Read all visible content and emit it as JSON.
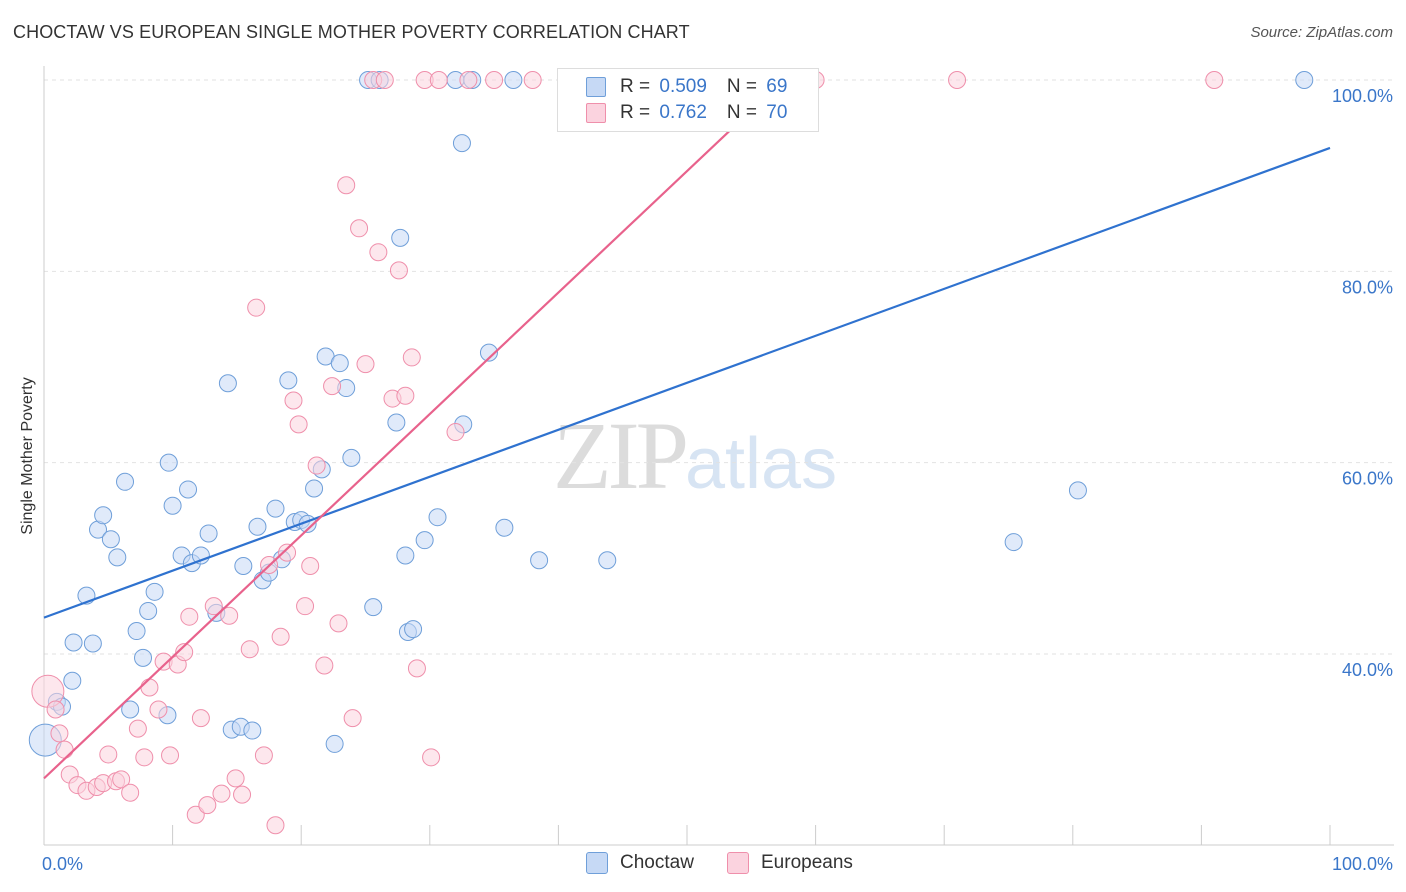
{
  "title": "CHOCTAW VS EUROPEAN SINGLE MOTHER POVERTY CORRELATION CHART",
  "source": "Source: ZipAtlas.com",
  "watermark": {
    "zip": "ZIP",
    "atlas": "atlas"
  },
  "colors": {
    "choctaw_fill": "#c6d9f5",
    "choctaw_stroke": "#6f9fd9",
    "choctaw_line": "#2f72cf",
    "europeans_fill": "#fbd3df",
    "europeans_stroke": "#ef8fab",
    "europeans_line": "#e8628c",
    "axis_text": "#3a76c9"
  },
  "legend_top": {
    "rows": [
      {
        "r_label": "R = ",
        "r_value": "0.509",
        "n_label": "N = ",
        "n_value": "69"
      },
      {
        "r_label": "R = ",
        "r_value": "0.762",
        "n_label": "N = ",
        "n_value": "70"
      }
    ]
  },
  "legend_bottom": [
    "Choctaw",
    "Europeans"
  ],
  "chart_data": {
    "type": "scatter",
    "title": "CHOCTAW VS EUROPEAN SINGLE MOTHER POVERTY CORRELATION CHART",
    "xlabel": "",
    "ylabel": "Single Mother Poverty",
    "x_ticks": [
      "0.0%",
      "100.0%"
    ],
    "y_ticks": [
      "40.0%",
      "60.0%",
      "80.0%",
      "100.0%"
    ],
    "xlim": [
      0,
      100
    ],
    "ylim": [
      20.5,
      101
    ],
    "grid": true,
    "legend_position": "top-center",
    "series": [
      {
        "name": "Choctaw",
        "r": 0.509,
        "n": 69,
        "trend": {
          "x": [
            0,
            100
          ],
          "y": [
            43.8,
            92.9
          ]
        },
        "points": [
          [
            0.1,
            31
          ],
          [
            1.0,
            35
          ],
          [
            1.4,
            34.5
          ],
          [
            2.2,
            37.2
          ],
          [
            2.3,
            41.2
          ],
          [
            3.3,
            46.1
          ],
          [
            3.8,
            41.1
          ],
          [
            4.2,
            53
          ],
          [
            4.6,
            54.5
          ],
          [
            5.2,
            52
          ],
          [
            5.7,
            50.1
          ],
          [
            6.3,
            58
          ],
          [
            6.7,
            34.2
          ],
          [
            7.2,
            42.4
          ],
          [
            7.7,
            39.6
          ],
          [
            8.1,
            44.5
          ],
          [
            8.6,
            46.5
          ],
          [
            9.6,
            33.6
          ],
          [
            9.7,
            60
          ],
          [
            10.0,
            55.5
          ],
          [
            10.7,
            50.3
          ],
          [
            11.2,
            57.2
          ],
          [
            11.5,
            49.5
          ],
          [
            12.2,
            50.3
          ],
          [
            12.8,
            52.6
          ],
          [
            13.4,
            44.3
          ],
          [
            14.3,
            68.3
          ],
          [
            14.6,
            32.1
          ],
          [
            15.3,
            32.4
          ],
          [
            15.5,
            49.2
          ],
          [
            16.2,
            32
          ],
          [
            16.6,
            53.3
          ],
          [
            17.0,
            47.7
          ],
          [
            17.5,
            48.5
          ],
          [
            18.0,
            55.2
          ],
          [
            18.5,
            49.9
          ],
          [
            19.0,
            68.6
          ],
          [
            19.5,
            53.8
          ],
          [
            20.0,
            54.0
          ],
          [
            20.5,
            53.6
          ],
          [
            21.0,
            57.3
          ],
          [
            21.6,
            59.3
          ],
          [
            21.9,
            71.1
          ],
          [
            22.6,
            30.6
          ],
          [
            23.0,
            70.4
          ],
          [
            23.5,
            67.8
          ],
          [
            23.9,
            60.5
          ],
          [
            25.2,
            100
          ],
          [
            25.6,
            44.9
          ],
          [
            26.1,
            100
          ],
          [
            27.4,
            64.2
          ],
          [
            27.7,
            83.5
          ],
          [
            28.1,
            50.3
          ],
          [
            28.3,
            42.3
          ],
          [
            28.7,
            42.6
          ],
          [
            29.6,
            51.9
          ],
          [
            30.6,
            54.3
          ],
          [
            32.0,
            100
          ],
          [
            32.5,
            93.4
          ],
          [
            32.6,
            64
          ],
          [
            33.3,
            100
          ],
          [
            34.6,
            71.5
          ],
          [
            35.8,
            53.2
          ],
          [
            36.5,
            100
          ],
          [
            38.5,
            49.8
          ],
          [
            43.8,
            49.8
          ],
          [
            75.4,
            51.7
          ],
          [
            80.4,
            57.1
          ],
          [
            98.0,
            100
          ]
        ]
      },
      {
        "name": "Europeans",
        "r": 0.762,
        "n": 70,
        "trend": {
          "x": [
            0,
            57.5
          ],
          "y": [
            27.0,
            100
          ]
        },
        "points": [
          [
            0.3,
            36.1
          ],
          [
            0.9,
            34.2
          ],
          [
            1.2,
            31.7
          ],
          [
            1.6,
            30
          ],
          [
            2.0,
            27.4
          ],
          [
            2.6,
            26.3
          ],
          [
            3.3,
            25.7
          ],
          [
            4.1,
            26.1
          ],
          [
            4.6,
            26.5
          ],
          [
            5.0,
            29.5
          ],
          [
            5.6,
            26.7
          ],
          [
            6.0,
            26.9
          ],
          [
            6.7,
            25.5
          ],
          [
            7.3,
            32.2
          ],
          [
            7.8,
            29.2
          ],
          [
            8.2,
            36.5
          ],
          [
            8.9,
            34.2
          ],
          [
            9.3,
            39.2
          ],
          [
            9.8,
            29.4
          ],
          [
            10.4,
            38.9
          ],
          [
            10.9,
            40.2
          ],
          [
            11.3,
            43.9
          ],
          [
            11.8,
            23.2
          ],
          [
            12.2,
            33.3
          ],
          [
            12.7,
            24.2
          ],
          [
            13.2,
            45
          ],
          [
            13.8,
            25.4
          ],
          [
            14.4,
            44
          ],
          [
            14.9,
            27.0
          ],
          [
            15.4,
            25.3
          ],
          [
            16.0,
            40.5
          ],
          [
            16.5,
            76.2
          ],
          [
            17.1,
            29.4
          ],
          [
            17.5,
            49.3
          ],
          [
            18.0,
            22.1
          ],
          [
            18.4,
            41.8
          ],
          [
            18.9,
            50.6
          ],
          [
            19.4,
            66.5
          ],
          [
            19.8,
            64
          ],
          [
            20.3,
            45
          ],
          [
            20.7,
            49.2
          ],
          [
            21.2,
            59.7
          ],
          [
            21.8,
            38.8
          ],
          [
            22.4,
            68
          ],
          [
            22.9,
            43.2
          ],
          [
            23.5,
            89
          ],
          [
            24.0,
            33.3
          ],
          [
            24.5,
            84.5
          ],
          [
            25.0,
            70.3
          ],
          [
            25.6,
            100
          ],
          [
            26.0,
            82
          ],
          [
            26.5,
            100
          ],
          [
            27.1,
            66.7
          ],
          [
            27.6,
            80.1
          ],
          [
            28.1,
            67
          ],
          [
            28.6,
            71
          ],
          [
            29.0,
            38.5
          ],
          [
            29.6,
            100
          ],
          [
            30.1,
            29.2
          ],
          [
            30.7,
            100
          ],
          [
            32.0,
            63.2
          ],
          [
            33.0,
            100
          ],
          [
            35.0,
            100
          ],
          [
            38.0,
            100
          ],
          [
            42.0,
            100
          ],
          [
            46.0,
            100
          ],
          [
            51.0,
            100
          ],
          [
            60.0,
            100
          ],
          [
            71.0,
            100
          ],
          [
            91.0,
            100
          ]
        ]
      }
    ]
  }
}
